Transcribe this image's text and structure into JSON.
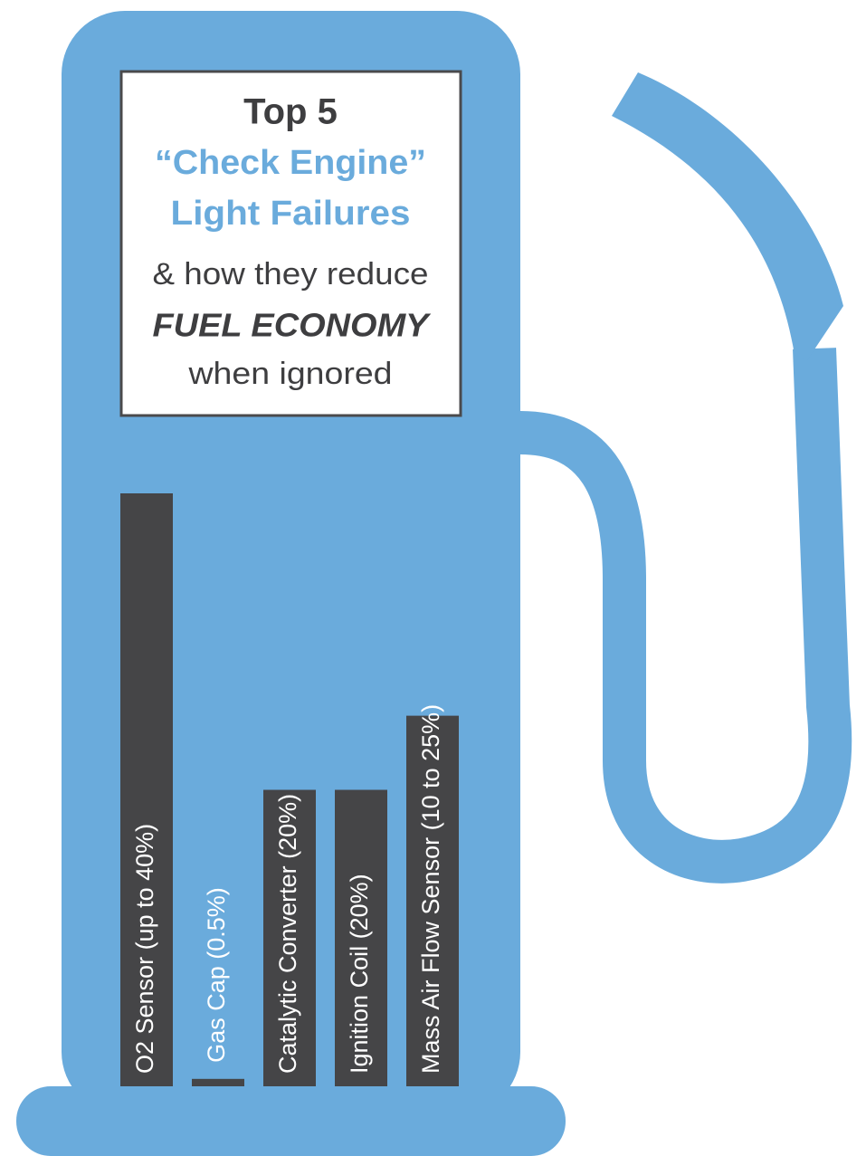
{
  "chart_data": {
    "type": "bar",
    "title": [
      "Top 5",
      "“Check Engine”",
      "Light Failures"
    ],
    "subtitle": [
      "& how they reduce",
      "FUEL ECONOMY",
      "when ignored"
    ],
    "categories": [
      "O2 Sensor (up to 40%)",
      "Gas Cap (0.5%)",
      "Catalytic Converter (20%)",
      "Ignition Coil (20%)",
      "Mass Air Flow Sensor (10 to 25%)"
    ],
    "values": [
      40,
      0.5,
      20,
      20,
      25
    ],
    "color": "#454547",
    "ylim": [
      0,
      40
    ]
  }
}
